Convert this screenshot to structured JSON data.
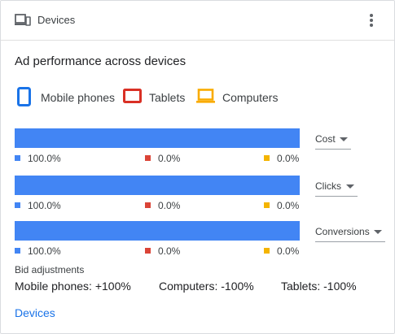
{
  "header": {
    "title": "Devices",
    "icon": "devices-icon",
    "menu_icon": "more-vert-icon"
  },
  "card_title": "Ad performance across devices",
  "legend": [
    {
      "label": "Mobile phones",
      "icon": "mobile-phone-icon",
      "color": "#1a73e8"
    },
    {
      "label": "Tablets",
      "icon": "tablet-icon",
      "color": "#d93025"
    },
    {
      "label": "Computers",
      "icon": "computer-icon",
      "color": "#f9ab00"
    }
  ],
  "colors": {
    "mobile": "#4285f4",
    "tablets": "#db4437",
    "computers": "#f4b400",
    "link": "#1a73e8"
  },
  "chart_data": {
    "type": "bar",
    "stacked": true,
    "orientation": "horizontal",
    "categories": [
      "Cost",
      "Clicks",
      "Conversions"
    ],
    "series": [
      {
        "name": "Mobile phones",
        "values": [
          100.0,
          100.0,
          100.0
        ],
        "labels": [
          "100.0%",
          "100.0%",
          "100.0%"
        ]
      },
      {
        "name": "Tablets",
        "values": [
          0.0,
          0.0,
          0.0
        ],
        "labels": [
          "0.0%",
          "0.0%",
          "0.0%"
        ]
      },
      {
        "name": "Computers",
        "values": [
          0.0,
          0.0,
          0.0
        ],
        "labels": [
          "0.0%",
          "0.0%",
          "0.0%"
        ]
      }
    ],
    "xlim": [
      0,
      100
    ]
  },
  "metrics": [
    {
      "dropdown": "Cost"
    },
    {
      "dropdown": "Clicks"
    },
    {
      "dropdown": "Conversions"
    }
  ],
  "bid_adjustments": {
    "title": "Bid adjustments",
    "items": [
      "Mobile phones: +100%",
      "Computers: -100%",
      "Tablets: -100%"
    ]
  },
  "footer_link": "Devices"
}
